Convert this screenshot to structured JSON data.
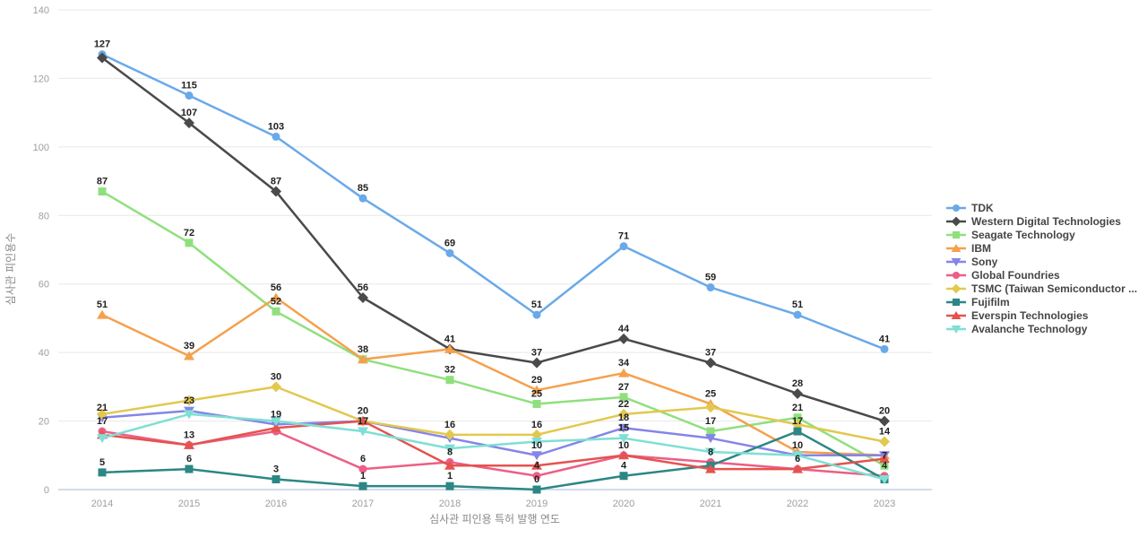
{
  "chart_data": {
    "type": "line",
    "title": "",
    "xlabel": "심사관 피인용 특허 발행 연도",
    "ylabel": "심사관 피인용수",
    "x_categories": [
      "2014",
      "2015",
      "2016",
      "2017",
      "2018",
      "2019",
      "2020",
      "2021",
      "2022",
      "2023"
    ],
    "y_ticks": [
      0,
      20,
      40,
      60,
      80,
      100,
      120,
      140
    ],
    "ylim": [
      0,
      140
    ],
    "grid": "horizontal",
    "legend_position": "right",
    "series": [
      {
        "name": "TDK",
        "color": "#6aa9e9",
        "marker": "circle",
        "values": [
          127,
          115,
          103,
          85,
          69,
          51,
          71,
          59,
          51,
          41
        ],
        "labels_shown": [
          1,
          1,
          1,
          1,
          1,
          1,
          1,
          1,
          1,
          1
        ]
      },
      {
        "name": "Western Digital Technologies",
        "color": "#4a4a4a",
        "marker": "diamond",
        "values": [
          126,
          107,
          87,
          56,
          41,
          37,
          44,
          37,
          28,
          20
        ],
        "labels_shown": [
          0,
          1,
          1,
          1,
          0,
          1,
          1,
          1,
          1,
          1
        ]
      },
      {
        "name": "Seagate Technology",
        "color": "#8fe07d",
        "marker": "square",
        "values": [
          87,
          72,
          52,
          38,
          32,
          25,
          27,
          17,
          21,
          7
        ],
        "labels_shown": [
          1,
          1,
          1,
          0,
          1,
          1,
          1,
          1,
          1,
          1
        ]
      },
      {
        "name": "IBM",
        "color": "#f5a04c",
        "marker": "triangle-up",
        "values": [
          51,
          39,
          56,
          38,
          41,
          29,
          34,
          25,
          11,
          10
        ],
        "labels_shown": [
          1,
          1,
          1,
          1,
          1,
          1,
          1,
          1,
          0,
          0
        ]
      },
      {
        "name": "Sony",
        "color": "#8585e8",
        "marker": "triangle-down",
        "values": [
          21,
          23,
          19,
          20,
          15,
          10,
          18,
          15,
          10,
          10
        ],
        "labels_shown": [
          1,
          1,
          1,
          1,
          0,
          1,
          1,
          0,
          1,
          0
        ]
      },
      {
        "name": "Global Foundries",
        "color": "#ec5f86",
        "marker": "circle",
        "values": [
          17,
          13,
          17,
          6,
          8,
          4,
          10,
          8,
          6,
          4
        ],
        "labels_shown": [
          1,
          1,
          0,
          1,
          1,
          1,
          0,
          1,
          1,
          1
        ]
      },
      {
        "name": "TSMC (Taiwan Semiconductor ...",
        "color": "#e2c84f",
        "marker": "diamond",
        "values": [
          22,
          26,
          30,
          20,
          16,
          16,
          22,
          24,
          19,
          14
        ],
        "labels_shown": [
          0,
          0,
          1,
          0,
          1,
          1,
          1,
          0,
          0,
          1
        ]
      },
      {
        "name": "Fujifilm",
        "color": "#2c8784",
        "marker": "square",
        "values": [
          5,
          6,
          3,
          1,
          1,
          0,
          4,
          7,
          17,
          3
        ],
        "labels_shown": [
          1,
          1,
          1,
          1,
          1,
          1,
          1,
          0,
          1,
          0
        ]
      },
      {
        "name": "Everspin Technologies",
        "color": "#e4534f",
        "marker": "triangle-up",
        "values": [
          16,
          13,
          18,
          20,
          7,
          7,
          10,
          6,
          6,
          9
        ],
        "labels_shown": [
          0,
          0,
          0,
          0,
          0,
          0,
          1,
          0,
          0,
          0
        ]
      },
      {
        "name": "Avalanche Technology",
        "color": "#7fdfd4",
        "marker": "triangle-down",
        "values": [
          15,
          22,
          20,
          17,
          12,
          14,
          15,
          11,
          10,
          3
        ],
        "labels_shown": [
          0,
          0,
          0,
          1,
          0,
          0,
          1,
          0,
          0,
          0
        ]
      }
    ],
    "colors": {
      "gridline": "#e8e8e8",
      "axis_line": "#c3d0e6",
      "tick_text": "#9e9e9e",
      "axis_title_text": "#8a8a8a",
      "data_label_text": "#212121"
    }
  }
}
